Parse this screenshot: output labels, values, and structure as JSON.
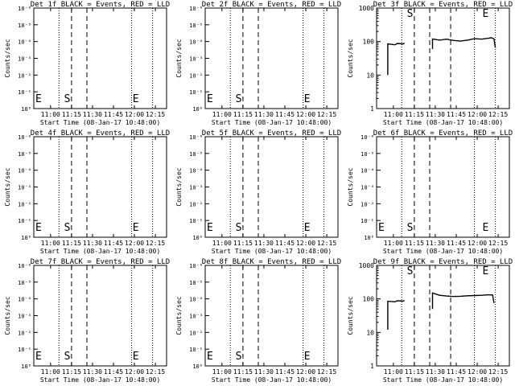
{
  "xlabel": "Start Time (08-Jan-17 10:48:00)",
  "ylabel": "Counts/sec",
  "x_tick_labels": [
    "11:00",
    "11:15",
    "11:30",
    "11:45",
    "12:00",
    "12:15"
  ],
  "x_range_minutes_after_start": [
    0,
    95
  ],
  "colors": {
    "axes": "#000000",
    "events": "#000000",
    "lld": "#ff0000"
  },
  "chart_data": [
    {
      "type": "line",
      "title": "Det 1f BLACK = Events, RED = LLD",
      "ylabel": "Counts/sec",
      "xlabel": "Start Time (08-Jan-17 10:48:00)",
      "y_scale": "log",
      "y_tick_labels": [
        "10⁰",
        "10⁻¹",
        "10⁻²",
        "10⁻³",
        "10⁻⁴",
        "10⁻⁵",
        "10⁻⁶"
      ],
      "ylim_exponents": [
        0,
        -6
      ],
      "markers": [
        {
          "label": "E",
          "time": "10:48"
        },
        {
          "label": "S",
          "time": "11:12"
        },
        {
          "label": "E",
          "time": "12:01"
        }
      ],
      "series": []
    },
    {
      "type": "line",
      "title": "Det 2f BLACK = Events, RED = LLD",
      "ylabel": "Counts/sec",
      "xlabel": "Start Time (08-Jan-17 10:48:00)",
      "y_scale": "log",
      "y_tick_labels": [
        "10⁰",
        "10⁻¹",
        "10⁻²",
        "10⁻³",
        "10⁻⁴",
        "10⁻⁵",
        "10⁻⁶"
      ],
      "ylim_exponents": [
        0,
        -6
      ],
      "markers": [
        {
          "label": "E",
          "time": "10:48"
        },
        {
          "label": "S",
          "time": "11:12"
        },
        {
          "label": "E",
          "time": "12:01"
        }
      ],
      "series": []
    },
    {
      "type": "line",
      "title": "Det 3f BLACK = Events, RED = LLD",
      "ylabel": "Counts/sec",
      "xlabel": "Start Time (08-Jan-17 10:48:00)",
      "y_scale": "log",
      "y_tick_labels": [
        "1000",
        "100",
        "10",
        "1"
      ],
      "ylim": [
        1,
        1000
      ],
      "markers": [
        {
          "label": "S",
          "time": "11:12"
        },
        {
          "label": "E",
          "time": "12:06"
        }
      ],
      "series": [
        {
          "values": [
            [
              8,
              10
            ],
            [
              8,
              85
            ],
            [
              13,
              80
            ],
            [
              15,
              88
            ],
            [
              19,
              85
            ],
            [
              20,
              90
            ]
          ]
        },
        {
          "values": [
            [
              40,
              60
            ],
            [
              40,
              120
            ],
            [
              45,
              110
            ],
            [
              50,
              118
            ],
            [
              55,
              108
            ],
            [
              60,
              103
            ],
            [
              65,
              110
            ],
            [
              70,
              122
            ],
            [
              75,
              118
            ],
            [
              80,
              125
            ],
            [
              82,
              130
            ],
            [
              84,
              120
            ],
            [
              85,
              65
            ]
          ]
        }
      ]
    },
    {
      "type": "line",
      "title": "Det 4f BLACK = Events, RED = LLD",
      "ylabel": "Counts/sec",
      "xlabel": "Start Time (08-Jan-17 10:48:00)",
      "y_scale": "log",
      "y_tick_labels": [
        "10⁰",
        "10⁻¹",
        "10⁻²",
        "10⁻³",
        "10⁻⁴",
        "10⁻⁵",
        "10⁻⁶"
      ],
      "ylim_exponents": [
        0,
        -6
      ],
      "markers": [
        {
          "label": "E",
          "time": "10:48"
        },
        {
          "label": "S",
          "time": "11:12"
        },
        {
          "label": "E",
          "time": "12:01"
        }
      ],
      "series": []
    },
    {
      "type": "line",
      "title": "Det 5f BLACK = Events, RED = LLD",
      "ylabel": "Counts/sec",
      "xlabel": "Start Time (08-Jan-17 10:48:00)",
      "y_scale": "log",
      "y_tick_labels": [
        "10⁰",
        "10⁻¹",
        "10⁻²",
        "10⁻³",
        "10⁻⁴",
        "10⁻⁵",
        "10⁻⁶"
      ],
      "ylim_exponents": [
        0,
        -6
      ],
      "markers": [
        {
          "label": "E",
          "time": "10:48"
        },
        {
          "label": "S",
          "time": "11:12"
        },
        {
          "label": "E",
          "time": "12:01"
        }
      ],
      "series": []
    },
    {
      "type": "line",
      "title": "Det 6f BLACK = Events, RED = LLD",
      "ylabel": "Counts/sec",
      "xlabel": "Start Time (08-Jan-17 10:48:00)",
      "y_scale": "log",
      "y_tick_labels": [
        "10⁰",
        "10⁻¹",
        "10⁻²",
        "10⁻³",
        "10⁻⁴",
        "10⁻⁵",
        "10⁻⁶"
      ],
      "ylim_exponents": [
        0,
        -6
      ],
      "markers": [
        {
          "label": "E",
          "time": "10:48"
        },
        {
          "label": "S",
          "time": "11:12"
        },
        {
          "label": "E",
          "time": "12:06"
        }
      ],
      "series": []
    },
    {
      "type": "line",
      "title": "Det 7f BLACK = Events, RED = LLD",
      "ylabel": "Counts/sec",
      "xlabel": "Start Time (08-Jan-17 10:48:00)",
      "y_scale": "log",
      "y_tick_labels": [
        "10⁰",
        "10⁻¹",
        "10⁻²",
        "10⁻³",
        "10⁻⁴",
        "10⁻⁵",
        "10⁻⁶"
      ],
      "ylim_exponents": [
        0,
        -6
      ],
      "markers": [
        {
          "label": "E",
          "time": "10:48"
        },
        {
          "label": "S",
          "time": "11:12"
        },
        {
          "label": "E",
          "time": "12:01"
        }
      ],
      "series": []
    },
    {
      "type": "line",
      "title": "Det 8f BLACK = Events, RED = LLD",
      "ylabel": "Counts/sec",
      "xlabel": "Start Time (08-Jan-17 10:48:00)",
      "y_scale": "log",
      "y_tick_labels": [
        "10⁰",
        "10⁻¹",
        "10⁻²",
        "10⁻³",
        "10⁻⁴",
        "10⁻⁵",
        "10⁻⁶"
      ],
      "ylim_exponents": [
        0,
        -6
      ],
      "markers": [
        {
          "label": "E",
          "time": "10:48"
        },
        {
          "label": "S",
          "time": "11:12"
        },
        {
          "label": "E",
          "time": "12:01"
        }
      ],
      "series": []
    },
    {
      "type": "line",
      "title": "Det 9f BLACK = Events, RED = LLD",
      "ylabel": "Counts/sec",
      "xlabel": "Start Time (08-Jan-17 10:48:00)",
      "y_scale": "log",
      "y_tick_labels": [
        "1000",
        "100",
        "10",
        "1"
      ],
      "ylim": [
        1,
        1000
      ],
      "markers": [
        {
          "label": "S",
          "time": "11:12"
        },
        {
          "label": "E",
          "time": "12:06"
        }
      ],
      "series": [
        {
          "values": [
            [
              8,
              12
            ],
            [
              8,
              85
            ],
            [
              13,
              82
            ],
            [
              15,
              88
            ],
            [
              19,
              86
            ],
            [
              20,
              90
            ]
          ]
        },
        {
          "values": [
            [
              40,
              50
            ],
            [
              40,
              150
            ],
            [
              45,
              128
            ],
            [
              50,
              122
            ],
            [
              55,
              118
            ],
            [
              60,
              120
            ],
            [
              65,
              124
            ],
            [
              70,
              126
            ],
            [
              75,
              128
            ],
            [
              80,
              132
            ],
            [
              83,
              130
            ],
            [
              84,
              75
            ]
          ]
        }
      ]
    }
  ]
}
